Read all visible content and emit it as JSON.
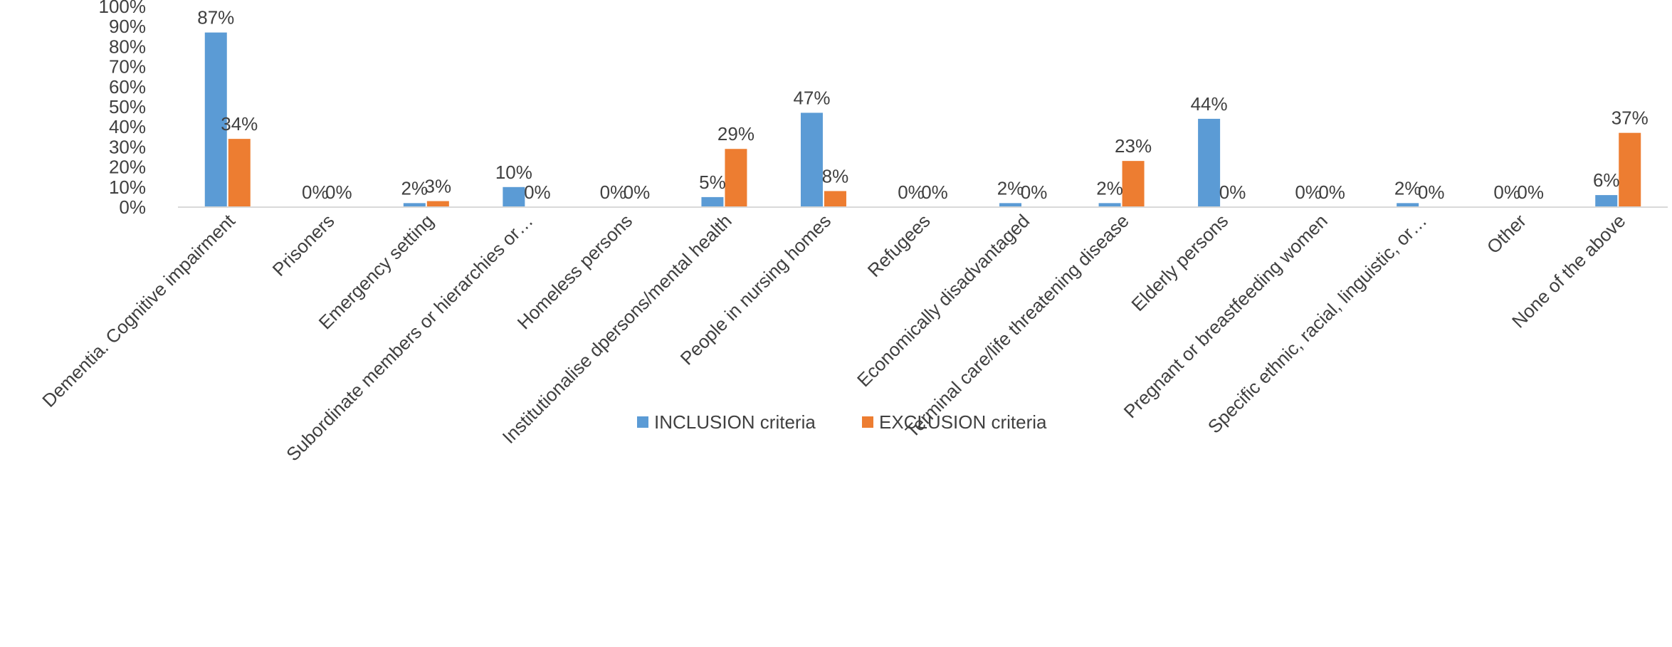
{
  "chart_data": {
    "type": "bar",
    "title": "",
    "xlabel": "",
    "ylabel": "",
    "ylim": [
      0,
      100
    ],
    "y_ticks": [
      "0%",
      "10%",
      "20%",
      "30%",
      "40%",
      "50%",
      "60%",
      "70%",
      "80%",
      "90%",
      "100%"
    ],
    "y_unit": "%",
    "grid": false,
    "legend_position": "bottom",
    "categories": [
      "Dementia. Cognitive impairment",
      "Prisoners",
      "Emergency setting",
      "Subordinate members or hierarchies or…",
      "Homeless persons",
      "Institutionalise dpersons/mental health",
      "People in nursing homes",
      "Refugees",
      "Economically disadvantaged",
      "Terminal care/life threatening disease",
      "Elderly persons",
      "Pregnant or breastfeeding women",
      "Specific ethnic, racial, linguistic, or…",
      "Other",
      "None of the above"
    ],
    "series": [
      {
        "name": "INCLUSION criteria",
        "color": "#5B9BD5",
        "values": [
          87,
          0,
          2,
          10,
          0,
          5,
          47,
          0,
          2,
          2,
          44,
          0,
          2,
          0,
          6
        ],
        "labels": [
          "87%",
          "0%",
          "2%",
          "10%",
          "0%",
          "5%",
          "47%",
          "0%",
          "2%",
          "2%",
          "44%",
          "0%",
          "2%",
          "0%",
          "6%"
        ]
      },
      {
        "name": "EXCLUSION criteria",
        "color": "#ED7D31",
        "values": [
          34,
          0,
          3,
          0,
          0,
          29,
          8,
          0,
          0,
          23,
          0,
          0,
          0,
          0,
          37
        ],
        "labels": [
          "34%",
          "0%",
          "3%",
          "0%",
          "0%",
          "29%",
          "8%",
          "0%",
          "0%",
          "23%",
          "0%",
          "0%",
          "0%",
          "0%",
          "37%"
        ]
      }
    ],
    "axis_color": "#D9D9D9"
  }
}
